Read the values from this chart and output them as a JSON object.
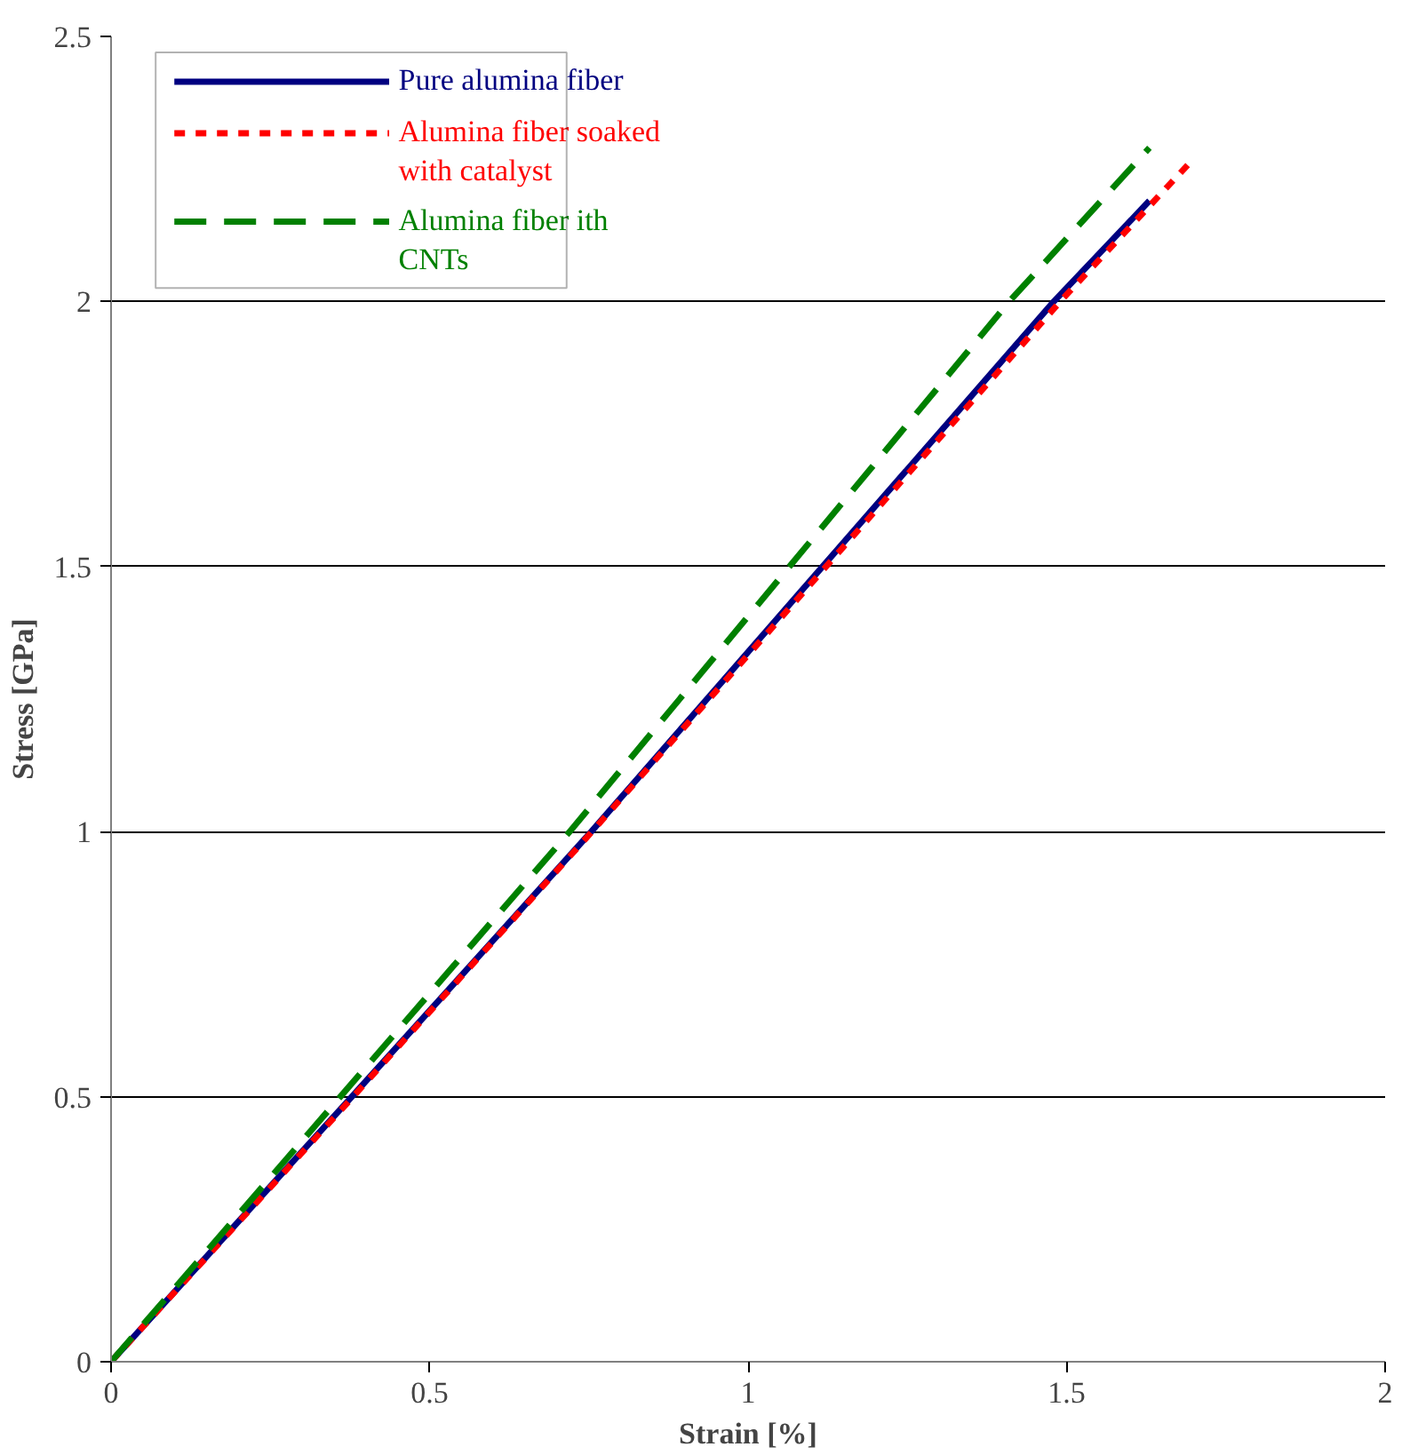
{
  "chart_data": {
    "type": "line",
    "xlabel": "Strain [%]",
    "ylabel": "Stress [GPa]",
    "xlim": [
      0,
      2
    ],
    "ylim": [
      0,
      2.5
    ],
    "xticks": [
      0,
      0.5,
      1,
      1.5,
      2
    ],
    "yticks": [
      0,
      0.5,
      1,
      1.5,
      2,
      2.5
    ],
    "grid": "y",
    "legend": "top left",
    "series": [
      {
        "name": "Pure alumina fiber",
        "color": "#000080",
        "line_style": "solid",
        "x": [
          0,
          0.378,
          0.754,
          1.48,
          1.63
        ],
        "values": [
          0,
          0.5,
          1,
          2,
          2.19
        ]
      },
      {
        "name": "Alumina fiber soaked with catalyst",
        "color": "#ff0000",
        "line_style": "dotted",
        "x": [
          0,
          0.38,
          0.755,
          1.49,
          1.7
        ],
        "values": [
          0,
          0.5,
          1,
          2,
          2.27
        ]
      },
      {
        "name": "Alumina fiber ith CNTs",
        "color": "#008000",
        "line_style": "dashed",
        "x": [
          0,
          0.36,
          0.72,
          1.41,
          1.63
        ],
        "values": [
          0,
          0.5,
          1,
          2,
          2.29
        ]
      }
    ]
  }
}
